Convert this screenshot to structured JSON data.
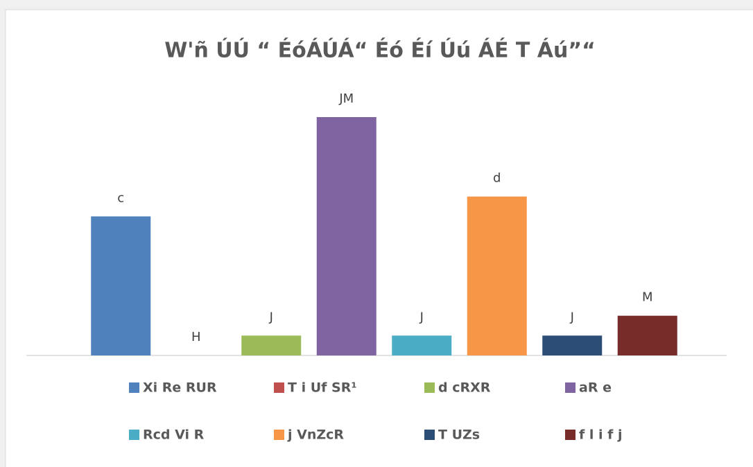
{
  "chart_data": {
    "type": "bar",
    "title": "W'ñ ÚÚ “ ÉóÁÚÁ“ Éó Éí Úú ÁÉ T Áú”“",
    "categories": [
      "Xi Re RUR",
      "T i Uf SR¹",
      "d cRXR",
      "aR e",
      "Rcd Vi R",
      "j VnZcR",
      "T UZs",
      "f l i f j"
    ],
    "values": [
      7,
      0,
      1,
      12,
      1,
      8,
      1,
      2
    ],
    "value_labels": [
      "c",
      "H",
      "J",
      "JM",
      "J",
      "d",
      "J",
      "M"
    ],
    "colors": [
      "#4f81bd",
      "#c0504d",
      "#9bbb59",
      "#8064a2",
      "#4bacc6",
      "#f79646",
      "#2c4d75",
      "#772c2a"
    ],
    "ylim": [
      0,
      12
    ],
    "legend": "bottom"
  }
}
